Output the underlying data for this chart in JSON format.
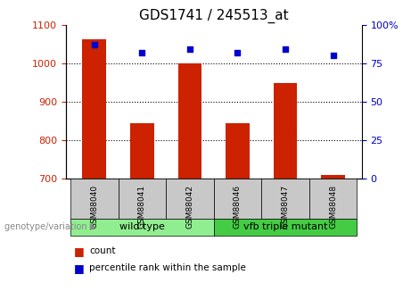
{
  "title": "GDS1741 / 245513_at",
  "samples": [
    "GSM88040",
    "GSM88041",
    "GSM88042",
    "GSM88046",
    "GSM88047",
    "GSM88048"
  ],
  "counts": [
    1063,
    845,
    1000,
    845,
    948,
    710
  ],
  "percentiles": [
    87,
    82,
    84,
    82,
    84,
    80
  ],
  "ylim_left": [
    700,
    1100
  ],
  "ylim_right": [
    0,
    100
  ],
  "yticks_left": [
    700,
    800,
    900,
    1000,
    1100
  ],
  "yticks_right": [
    0,
    25,
    50,
    75,
    100
  ],
  "ytick_right_labels": [
    "0",
    "25",
    "50",
    "75",
    "100%"
  ],
  "bar_color": "#cc2200",
  "dot_color": "#0000cc",
  "grid_color": "#000000",
  "wild_type_color": "#90ee90",
  "mutant_color": "#44cc44",
  "group_label_text": "genotype/variation",
  "legend_count_label": "count",
  "legend_pct_label": "percentile rank within the sample",
  "background_xtick": "#c8c8c8",
  "bar_width": 0.5
}
